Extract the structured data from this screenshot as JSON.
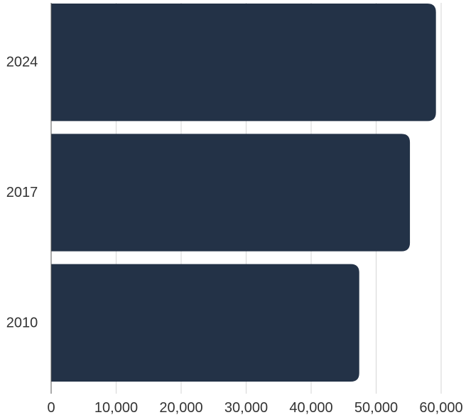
{
  "chart_data": {
    "type": "bar",
    "orientation": "horizontal",
    "categories": [
      "2024",
      "2017",
      "2010"
    ],
    "values": [
      59200,
      55200,
      47400
    ],
    "xlim": [
      0,
      60000
    ],
    "xticks": [
      0,
      10000,
      20000,
      30000,
      40000,
      50000,
      60000
    ],
    "xtick_labels": [
      "0",
      "10,000",
      "20,000",
      "30,000",
      "40,000",
      "50,000",
      "60,000"
    ],
    "grid": "vertical",
    "legend": "none",
    "colors": {
      "bar": "#233247"
    }
  }
}
